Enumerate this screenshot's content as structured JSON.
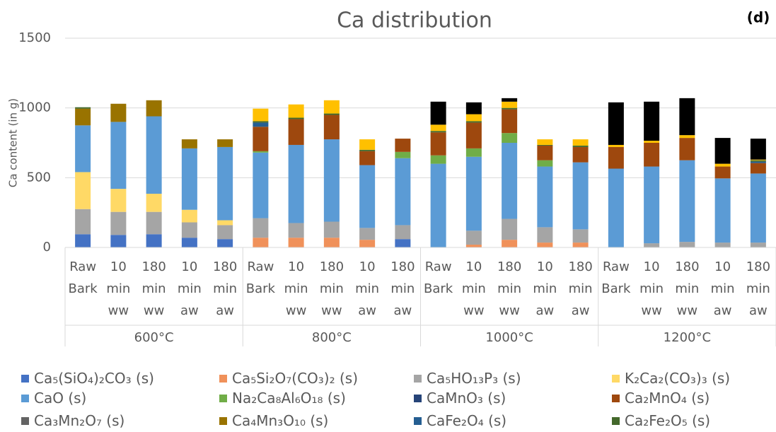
{
  "chart_data": {
    "type": "stacked-bar",
    "title": "Ca distribution",
    "panel_label": "(d)",
    "y_label": "Ca content (in g)",
    "categories": [
      "Raw Bark",
      "10 min ww",
      "180 min ww",
      "10 min aw",
      "180 min aw",
      "Raw Bark",
      "10 min ww",
      "180 min ww",
      "10 min aw",
      "180 min aw",
      "Raw Bark",
      "10 min ww",
      "180 min ww",
      "10 min aw",
      "180 min aw",
      "Raw Bark",
      "10 min ww",
      "180 min ww",
      "10 min aw",
      "180 min aw"
    ],
    "groups": [
      "600°C",
      "800°C",
      "1000°C",
      "1200°C"
    ],
    "ylim": [
      0,
      1500
    ],
    "yticks": [
      0,
      500,
      1000,
      1500
    ],
    "grid": true,
    "series": [
      {
        "name": "Ca₅(SiO₄)₂CO₃ (s)",
        "color": "#4472c4",
        "values": [
          95,
          90,
          95,
          70,
          60,
          0,
          0,
          0,
          0,
          60,
          0,
          0,
          0,
          0,
          0,
          0,
          0,
          0,
          0,
          0
        ]
      },
      {
        "name": "Ca₅Si₂O₇(CO₃)₂ (s)",
        "color": "#f0915a",
        "values": [
          0,
          0,
          0,
          0,
          0,
          70,
          70,
          70,
          55,
          0,
          0,
          20,
          55,
          35,
          35,
          0,
          0,
          0,
          0,
          0
        ]
      },
      {
        "name": "Ca₅HO₁₃P₃ (s)",
        "color": "#a5a5a5",
        "values": [
          180,
          165,
          160,
          110,
          100,
          140,
          105,
          115,
          85,
          100,
          0,
          100,
          150,
          110,
          95,
          0,
          30,
          40,
          35,
          35
        ]
      },
      {
        "name": "K₂Ca₂(CO₃)₃ (s)",
        "color": "#ffd966",
        "values": [
          265,
          165,
          130,
          90,
          35,
          0,
          0,
          0,
          0,
          0,
          0,
          0,
          0,
          0,
          0,
          0,
          0,
          0,
          0,
          0
        ]
      },
      {
        "name": "CaO (s)",
        "color": "#5b9bd5",
        "values": [
          335,
          480,
          555,
          440,
          525,
          470,
          560,
          590,
          450,
          480,
          600,
          530,
          545,
          435,
          480,
          565,
          550,
          585,
          460,
          495
        ]
      },
      {
        "name": "Na₂Ca₈Al₆O₁₈ (s)",
        "color": "#70ad47",
        "values": [
          0,
          0,
          0,
          0,
          0,
          10,
          0,
          0,
          0,
          45,
          60,
          60,
          70,
          45,
          0,
          0,
          0,
          0,
          0,
          0
        ]
      },
      {
        "name": "CaMnO₃ (s)",
        "color": "#264478",
        "values": [
          0,
          0,
          0,
          0,
          0,
          0,
          0,
          0,
          0,
          0,
          0,
          0,
          0,
          0,
          0,
          0,
          0,
          0,
          0,
          0
        ]
      },
      {
        "name": "Ca₂MnO₄ (s)",
        "color": "#9e480e",
        "values": [
          0,
          0,
          0,
          0,
          0,
          175,
          185,
          175,
          100,
          95,
          165,
          185,
          170,
          105,
          110,
          155,
          170,
          160,
          85,
          75
        ]
      },
      {
        "name": "Ca₃Mn₂O₇ (s)",
        "color": "#636363",
        "values": [
          0,
          0,
          0,
          0,
          0,
          0,
          0,
          0,
          0,
          0,
          0,
          0,
          0,
          0,
          0,
          0,
          0,
          0,
          0,
          0
        ]
      },
      {
        "name": "Ca₄Mn₃O₁₀ (s)",
        "color": "#997300",
        "values": [
          120,
          130,
          115,
          65,
          55,
          0,
          0,
          0,
          0,
          0,
          0,
          0,
          0,
          0,
          0,
          0,
          0,
          0,
          0,
          0
        ]
      },
      {
        "name": "CaFe₂O₄ (s)",
        "color": "#255e91",
        "values": [
          0,
          0,
          0,
          0,
          0,
          30,
          0,
          0,
          0,
          0,
          0,
          0,
          0,
          0,
          0,
          0,
          0,
          0,
          0,
          10
        ]
      },
      {
        "name": "Ca₂Fe₂O₅ (s)",
        "color": "#43682b",
        "values": [
          10,
          0,
          0,
          0,
          0,
          10,
          10,
          10,
          10,
          0,
          10,
          10,
          10,
          5,
          10,
          0,
          0,
          0,
          0,
          10
        ]
      },
      {
        "color": "#ffc000",
        "values": [
          0,
          0,
          0,
          0,
          0,
          90,
          95,
          95,
          75,
          0,
          45,
          50,
          45,
          40,
          45,
          15,
          15,
          20,
          20,
          5
        ]
      },
      {
        "color": "#000000",
        "values": [
          0,
          0,
          0,
          0,
          0,
          0,
          0,
          0,
          0,
          0,
          165,
          85,
          25,
          0,
          0,
          305,
          280,
          265,
          185,
          150
        ]
      }
    ]
  }
}
